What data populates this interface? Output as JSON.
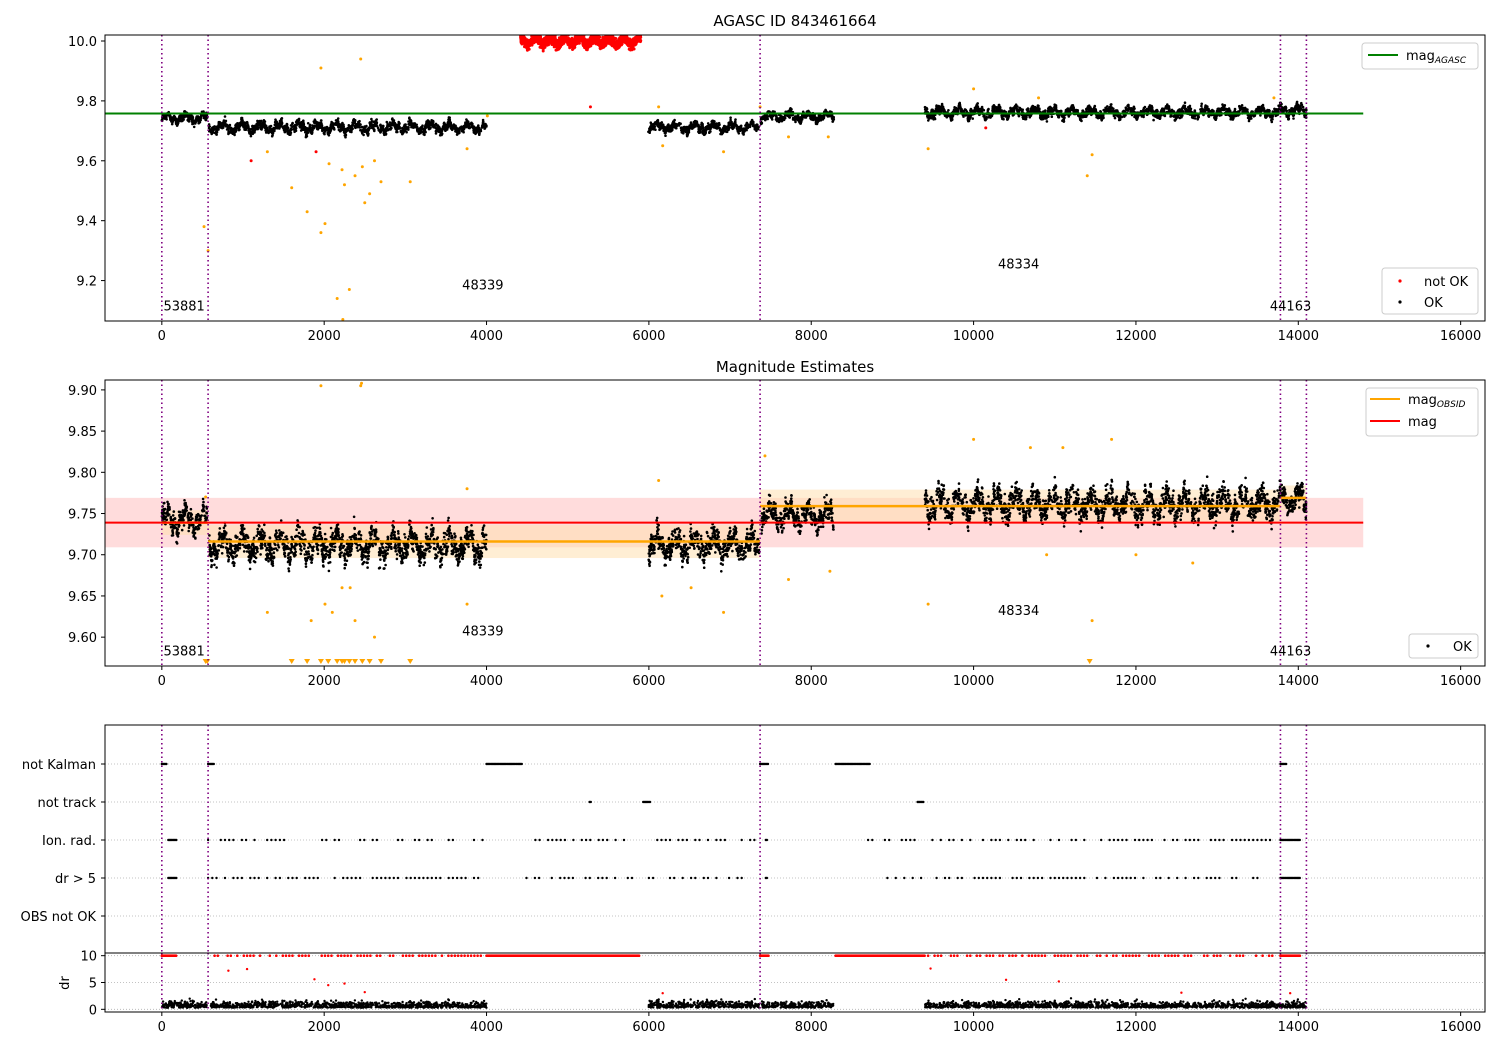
{
  "colors": {
    "ok": "#000000",
    "not_ok": "#ff0000",
    "excluded": "#ffa500",
    "agasc_line": "#008000",
    "obsid_line": "#ffa500",
    "mean_line": "#ff0000",
    "obsid_boundary": "#800080",
    "band_mean": "#ffc0c0",
    "band_obsid": "#ffe0b0"
  },
  "chart_data": [
    {
      "type": "scatter",
      "title": "AGASC ID 843461664",
      "xlim": [
        -700,
        16300
      ],
      "ylim": [
        9.065,
        10.02
      ],
      "x_ticks": [
        0,
        2000,
        4000,
        6000,
        8000,
        10000,
        12000,
        14000,
        16000
      ],
      "x_tick_labels": [
        "0",
        "2000",
        "4000",
        "6000",
        "8000",
        "10000",
        "12000",
        "14000",
        "16000"
      ],
      "y_ticks": [
        9.2,
        9.4,
        9.6,
        9.8,
        10.0
      ],
      "y_tick_labels": [
        "9.2",
        "9.4",
        "9.6",
        "9.8",
        "10.0"
      ],
      "obsid_boundaries": [
        0,
        570,
        7370,
        13780,
        14100
      ],
      "obsid_labels": [
        {
          "text": "53881",
          "x": 20,
          "y": 9.1
        },
        {
          "text": "48339",
          "x": 3700,
          "y": 9.17
        },
        {
          "text": "48334",
          "x": 10300,
          "y": 9.24
        },
        {
          "text": "44163",
          "x": 13650,
          "y": 9.1
        }
      ],
      "mag_agasc": {
        "value": 9.758,
        "x_range": [
          -700,
          14800
        ]
      },
      "segments": [
        {
          "x": [
            0,
            560
          ],
          "mean": 9.742,
          "spread": 0.012
        },
        {
          "x": [
            580,
            4000
          ],
          "mean": 9.712,
          "spread": 0.014
        },
        {
          "x": [
            5990,
            7360
          ],
          "mean": 9.712,
          "spread": 0.013
        },
        {
          "x": [
            7380,
            8280
          ],
          "mean": 9.748,
          "spread": 0.012
        },
        {
          "x": [
            9400,
            13780
          ],
          "mean": 9.762,
          "spread": 0.014
        },
        {
          "x": [
            13780,
            14100
          ],
          "mean": 9.768,
          "spread": 0.014
        }
      ],
      "not_ok_cluster": {
        "x": [
          4420,
          5900
        ],
        "y": [
          9.93,
          10.02
        ]
      },
      "outliers_ok": [
        [
          1100,
          9.6
        ],
        [
          5280,
          9.78
        ],
        [
          10150,
          9.71
        ],
        [
          1900,
          9.63
        ]
      ],
      "outliers_excluded": [
        [
          520,
          9.38
        ],
        [
          570,
          9.3
        ],
        [
          1300,
          9.63
        ],
        [
          1600,
          9.51
        ],
        [
          1790,
          9.43
        ],
        [
          1960,
          9.36
        ],
        [
          2010,
          9.39
        ],
        [
          2060,
          9.59
        ],
        [
          2160,
          9.14
        ],
        [
          2220,
          9.57
        ],
        [
          2250,
          9.52
        ],
        [
          2310,
          9.17
        ],
        [
          2380,
          9.55
        ],
        [
          2470,
          9.58
        ],
        [
          2500,
          9.46
        ],
        [
          2560,
          9.49
        ],
        [
          2620,
          9.6
        ],
        [
          2700,
          9.53
        ],
        [
          3060,
          9.53
        ],
        [
          2450,
          9.94
        ],
        [
          1960,
          9.91
        ],
        [
          3760,
          9.64
        ],
        [
          4010,
          9.75
        ],
        [
          6120,
          9.78
        ],
        [
          6170,
          9.65
        ],
        [
          6920,
          9.63
        ],
        [
          7370,
          9.78
        ],
        [
          7720,
          9.68
        ],
        [
          8210,
          9.68
        ],
        [
          9440,
          9.64
        ],
        [
          10000,
          9.84
        ],
        [
          10800,
          9.81
        ],
        [
          11400,
          9.55
        ],
        [
          11460,
          9.62
        ],
        [
          13700,
          9.81
        ],
        [
          2230,
          9.07
        ]
      ],
      "legend": {
        "position": "top-right",
        "entries": [
          "mag_AGASC"
        ]
      },
      "legend2": {
        "position": "lower-right",
        "entries": [
          "not OK",
          "OK"
        ]
      }
    },
    {
      "type": "scatter",
      "title": "Magnitude Estimates",
      "xlim": [
        -700,
        16300
      ],
      "ylim": [
        9.565,
        9.912
      ],
      "x_ticks": [
        0,
        2000,
        4000,
        6000,
        8000,
        10000,
        12000,
        14000,
        16000
      ],
      "x_tick_labels": [
        "0",
        "2000",
        "4000",
        "6000",
        "8000",
        "10000",
        "12000",
        "14000",
        "16000"
      ],
      "y_ticks": [
        9.6,
        9.65,
        9.7,
        9.75,
        9.8,
        9.85,
        9.9
      ],
      "y_tick_labels": [
        "9.60",
        "9.65",
        "9.70",
        "9.75",
        "9.80",
        "9.85",
        "9.90"
      ],
      "obsid_boundaries": [
        0,
        570,
        7370,
        13780,
        14100
      ],
      "obsid_labels": [
        {
          "text": "53881",
          "x": 20,
          "y": 9.578
        },
        {
          "text": "48339",
          "x": 3700,
          "y": 9.602
        },
        {
          "text": "48334",
          "x": 10300,
          "y": 9.627
        },
        {
          "text": "44163",
          "x": 13650,
          "y": 9.578
        }
      ],
      "mag_mean": {
        "value": 9.739,
        "band": [
          9.709,
          9.769
        ],
        "x_range": [
          -700,
          14800
        ]
      },
      "mag_obsid": [
        {
          "x": [
            0,
            570
          ],
          "value": 9.739,
          "band": [
            9.724,
            9.754
          ]
        },
        {
          "x": [
            570,
            7370
          ],
          "value": 9.716,
          "band": [
            9.696,
            9.736
          ]
        },
        {
          "x": [
            7370,
            13780
          ],
          "value": 9.759,
          "band": [
            9.739,
            9.779
          ]
        },
        {
          "x": [
            13780,
            14100
          ],
          "value": 9.769,
          "band": [
            9.754,
            9.784
          ]
        }
      ],
      "segments": [
        {
          "x": [
            0,
            560
          ],
          "mean": 9.742,
          "spread": 0.012
        },
        {
          "x": [
            580,
            4000
          ],
          "mean": 9.712,
          "spread": 0.014
        },
        {
          "x": [
            5990,
            7360
          ],
          "mean": 9.712,
          "spread": 0.013
        },
        {
          "x": [
            7380,
            8280
          ],
          "mean": 9.748,
          "spread": 0.012
        },
        {
          "x": [
            9400,
            13780
          ],
          "mean": 9.762,
          "spread": 0.014
        },
        {
          "x": [
            13780,
            14100
          ],
          "mean": 9.768,
          "spread": 0.014
        }
      ],
      "outliers_excluded": [
        [
          540,
          9.77
        ],
        [
          1300,
          9.63
        ],
        [
          1840,
          9.62
        ],
        [
          2010,
          9.64
        ],
        [
          2100,
          9.63
        ],
        [
          2220,
          9.66
        ],
        [
          2320,
          9.66
        ],
        [
          2380,
          9.62
        ],
        [
          2620,
          9.6
        ],
        [
          3760,
          9.64
        ],
        [
          3760,
          9.78
        ],
        [
          6120,
          9.79
        ],
        [
          6160,
          9.65
        ],
        [
          6520,
          9.66
        ],
        [
          6920,
          9.63
        ],
        [
          7430,
          9.82
        ],
        [
          7720,
          9.67
        ],
        [
          8230,
          9.68
        ],
        [
          9440,
          9.64
        ],
        [
          10000,
          9.84
        ],
        [
          10700,
          9.83
        ],
        [
          10900,
          9.7
        ],
        [
          11100,
          9.83
        ],
        [
          11460,
          9.62
        ],
        [
          11700,
          9.84
        ],
        [
          12000,
          9.7
        ],
        [
          12700,
          9.69
        ],
        [
          1960,
          9.905
        ],
        [
          2450,
          9.905
        ],
        [
          2460,
          9.908
        ]
      ],
      "clipped_low_x": [
        540,
        560,
        1600,
        1790,
        1960,
        2050,
        2160,
        2220,
        2250,
        2310,
        2380,
        2470,
        2560,
        2700,
        3060,
        11430
      ],
      "legend": {
        "position": "top-right",
        "entries": [
          "mag_OBSID",
          "mag"
        ]
      },
      "legend2": {
        "position": "lower-right",
        "entries": [
          "OK"
        ]
      }
    },
    {
      "type": "scatter",
      "title": "",
      "xlim": [
        -700,
        16300
      ],
      "categories": [
        "not Kalman",
        "not track",
        "Ion. rad.",
        "dr > 5",
        "OBS not OK"
      ],
      "flag_runs": {
        "not Kalman": [
          [
            0,
            60
          ],
          [
            570,
            650
          ],
          [
            4000,
            4440
          ],
          [
            7370,
            7480
          ],
          [
            8300,
            8720
          ],
          [
            13780,
            13860
          ]
        ],
        "not track": [
          [
            5270,
            5290
          ],
          [
            5930,
            6020
          ],
          [
            9310,
            9380
          ]
        ],
        "Ion. rad.": [
          [
            80,
            180
          ],
          [
            570,
            3960
          ],
          [
            4550,
            5870
          ],
          [
            6000,
            7300
          ],
          [
            7440,
            7460
          ],
          [
            8700,
            9300
          ],
          [
            9440,
            13700
          ],
          [
            13780,
            14020
          ]
        ],
        "dr > 5": [
          [
            80,
            180
          ],
          [
            570,
            3960
          ],
          [
            4440,
            5880
          ],
          [
            6000,
            7300
          ],
          [
            7440,
            7460
          ],
          [
            8730,
            9400
          ],
          [
            9440,
            13700
          ],
          [
            13780,
            14020
          ]
        ],
        "OBS not OK": []
      }
    },
    {
      "type": "scatter",
      "title": "",
      "ylabel": "dr",
      "xlim": [
        -700,
        16300
      ],
      "ylim": [
        -0.5,
        10.5
      ],
      "x_ticks": [
        0,
        2000,
        4000,
        6000,
        8000,
        10000,
        12000,
        14000,
        16000
      ],
      "x_tick_labels": [
        "0",
        "2000",
        "4000",
        "6000",
        "8000",
        "10000",
        "12000",
        "14000",
        "16000"
      ],
      "y_ticks": [
        0,
        5,
        10
      ],
      "y_tick_labels": [
        "0",
        "5",
        "10"
      ],
      "clip_value": 10,
      "clipped_runs": [
        [
          0,
          180
        ],
        [
          570,
          3960
        ],
        [
          4000,
          5880
        ],
        [
          7370,
          7480
        ],
        [
          8300,
          9400
        ],
        [
          9440,
          13700
        ],
        [
          13780,
          14020
        ]
      ],
      "low_segments": [
        [
          0,
          560
        ],
        [
          600,
          4000
        ],
        [
          5990,
          7360
        ],
        [
          7380,
          8280
        ],
        [
          9400,
          13780
        ],
        [
          13780,
          14100
        ]
      ],
      "red_mid": [
        [
          820,
          7.2
        ],
        [
          1050,
          7.5
        ],
        [
          1880,
          5.6
        ],
        [
          2050,
          4.5
        ],
        [
          2250,
          4.8
        ],
        [
          2500,
          3.2
        ],
        [
          6170,
          3.0
        ],
        [
          9470,
          7.6
        ],
        [
          10400,
          5.5
        ],
        [
          11050,
          5.2
        ],
        [
          12560,
          3.1
        ],
        [
          13900,
          3.0
        ]
      ]
    }
  ]
}
